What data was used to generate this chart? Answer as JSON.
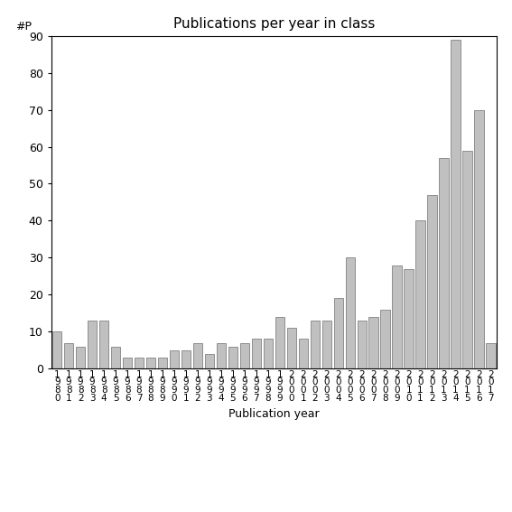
{
  "title": "Publications per year in class",
  "xlabel": "Publication year",
  "ylabel": "#P",
  "ylim": [
    0,
    90
  ],
  "yticks": [
    0,
    10,
    20,
    30,
    40,
    50,
    60,
    70,
    80,
    90
  ],
  "bar_color": "#c0c0c0",
  "bar_edgecolor": "#707070",
  "categories": [
    "1980",
    "1981",
    "1982",
    "1983",
    "1984",
    "1985",
    "1986",
    "1987",
    "1988",
    "1989",
    "1990",
    "1991",
    "1992",
    "1993",
    "1994",
    "1995",
    "1996",
    "1997",
    "1998",
    "1999",
    "2000",
    "2001",
    "2002",
    "2003",
    "2004",
    "2005",
    "2006",
    "2007",
    "2008",
    "2009",
    "2010",
    "2011",
    "2012",
    "2013",
    "2014",
    "2015",
    "2016",
    "2017"
  ],
  "values": [
    10,
    7,
    6,
    13,
    13,
    6,
    3,
    3,
    3,
    3,
    5,
    5,
    7,
    4,
    7,
    6,
    7,
    8,
    8,
    14,
    11,
    8,
    13,
    13,
    19,
    30,
    13,
    14,
    16,
    28,
    27,
    40,
    47,
    57,
    89,
    59,
    70,
    7
  ],
  "background_color": "#ffffff",
  "tick_label_fontsize": 7.5,
  "title_fontsize": 11,
  "axis_fontsize": 9
}
